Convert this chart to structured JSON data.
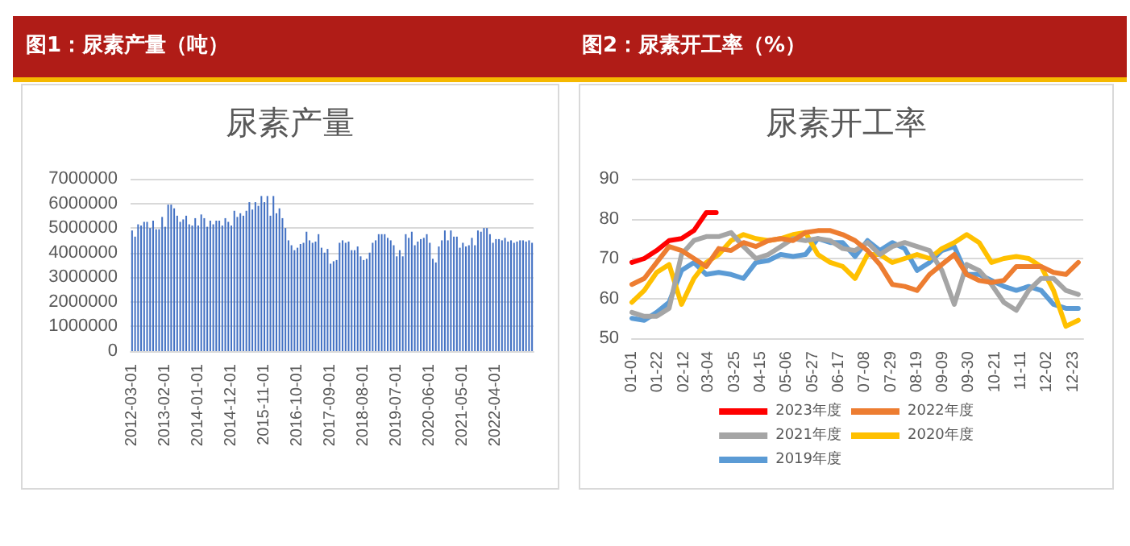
{
  "chart_data": [
    {
      "type": "bar",
      "title": "图1：尿素产量（吨）",
      "subtitle": "尿素产量",
      "color": "#4472c4",
      "grid": "y",
      "legend": false,
      "categories": [
        "2012-03-01",
        null,
        null,
        null,
        null,
        null,
        null,
        null,
        null,
        null,
        null,
        "2013-02-01",
        null,
        null,
        null,
        null,
        null,
        null,
        null,
        null,
        null,
        null,
        "2014-01-01",
        null,
        null,
        null,
        null,
        null,
        null,
        null,
        null,
        null,
        null,
        "2014-12-01",
        null,
        null,
        null,
        null,
        null,
        null,
        null,
        null,
        null,
        null,
        "2015-11-01",
        null,
        null,
        null,
        null,
        null,
        null,
        null,
        null,
        null,
        null,
        "2016-10-01",
        null,
        null,
        null,
        null,
        null,
        null,
        null,
        null,
        null,
        null,
        "2017-09-01",
        null,
        null,
        null,
        null,
        null,
        null,
        null,
        null,
        null,
        null,
        "2018-08-01",
        null,
        null,
        null,
        null,
        null,
        null,
        null,
        null,
        null,
        null,
        "2019-07-01",
        null,
        null,
        null,
        null,
        null,
        null,
        null,
        null,
        null,
        null,
        "2020-06-01",
        null,
        null,
        null,
        null,
        null,
        null,
        null,
        null,
        null,
        null,
        "2021-05-01",
        null,
        null,
        null,
        null,
        null,
        null,
        null,
        null,
        null,
        null,
        "2022-04-01",
        null,
        null,
        null,
        null,
        null,
        null,
        null,
        null,
        null,
        null,
        null,
        null
      ],
      "values": [
        4900000,
        4650000,
        5150000,
        5100000,
        5250000,
        5250000,
        5000000,
        5300000,
        4950000,
        4950000,
        5450000,
        5050000,
        5950000,
        5950000,
        5800000,
        5500000,
        5250000,
        5350000,
        5500000,
        5150000,
        5100000,
        5400000,
        5100000,
        5550000,
        5400000,
        5050000,
        5300000,
        5150000,
        5300000,
        5300000,
        5100000,
        5400000,
        5250000,
        5100000,
        5700000,
        5450000,
        5600000,
        5500000,
        5700000,
        6050000,
        5750000,
        6050000,
        5900000,
        6300000,
        6050000,
        6300000,
        5500000,
        6300000,
        5600000,
        5800000,
        5400000,
        5000000,
        4500000,
        4300000,
        4100000,
        4200000,
        4350000,
        4400000,
        4850000,
        4500000,
        4400000,
        4450000,
        4750000,
        4200000,
        4000000,
        4150000,
        3550000,
        3650000,
        3700000,
        4400000,
        4500000,
        4400000,
        4450000,
        4100000,
        4100000,
        4250000,
        3850000,
        3700000,
        3750000,
        4000000,
        4400000,
        4500000,
        4750000,
        4750000,
        4750000,
        4600000,
        4500000,
        4300000,
        3850000,
        4100000,
        3850000,
        4750000,
        4600000,
        4850000,
        4300000,
        4450000,
        4550000,
        4600000,
        4750000,
        4400000,
        3750000,
        3600000,
        4250000,
        4500000,
        4900000,
        4500000,
        4900000,
        4650000,
        4650000,
        4200000,
        4400000,
        4250000,
        4300000,
        4600000,
        4300000,
        4900000,
        4850000,
        5000000,
        5000000,
        4750000,
        4400000,
        4550000,
        4550000,
        4500000,
        4600000,
        4450000,
        4500000,
        4400000,
        4450000,
        4500000,
        4500000,
        4450000,
        4500000,
        4400000
      ],
      "ylim": [
        0,
        7000000
      ],
      "yticks": [
        0,
        1000000,
        2000000,
        3000000,
        4000000,
        5000000,
        6000000,
        7000000
      ]
    },
    {
      "type": "line",
      "title": "图2：尿素开工率（%）",
      "subtitle": "尿素开工率",
      "grid": "y",
      "legend": "bottom",
      "marker": "none",
      "line_style": "solid",
      "xlim": [
        "--01-01",
        "--12-31"
      ],
      "xticks": [
        {
          "value": "--01-01",
          "label": "01-01"
        },
        {
          "value": "--01-22",
          "label": "01-22"
        },
        {
          "value": "--02-12",
          "label": "02-12"
        },
        {
          "value": "--03-04",
          "label": "03-04"
        },
        {
          "value": "--03-25",
          "label": "03-25"
        },
        {
          "value": "--04-15",
          "label": "04-15"
        },
        {
          "value": "--05-06",
          "label": "05-06"
        },
        {
          "value": "--05-27",
          "label": "05-27"
        },
        {
          "value": "--06-17",
          "label": "06-17"
        },
        {
          "value": "--07-08",
          "label": "07-08"
        },
        {
          "value": "--07-29",
          "label": "07-29"
        },
        {
          "value": "--08-19",
          "label": "08-19"
        },
        {
          "value": "--09-09",
          "label": "09-09"
        },
        {
          "value": "--09-30",
          "label": "09-30"
        },
        {
          "value": "--10-21",
          "label": "10-21"
        },
        {
          "value": "--11-11",
          "label": "11-11"
        },
        {
          "value": "--12-02",
          "label": "12-02"
        },
        {
          "value": "--12-23",
          "label": "12-23"
        }
      ],
      "ylim": [
        50,
        90
      ],
      "yticks": [
        50,
        60,
        70,
        80,
        90
      ],
      "x": [
        "--01-01",
        "--01-11",
        "--01-21",
        "--01-31",
        "--02-10",
        "--02-20",
        "--03-02",
        "--03-12",
        "--03-22",
        "--04-01",
        "--04-11",
        "--04-21",
        "--05-01",
        "--05-11",
        "--05-21",
        "--05-31",
        "--06-10",
        "--06-20",
        "--06-30",
        "--07-10",
        "--07-20",
        "--07-30",
        "--08-09",
        "--08-19",
        "--08-29",
        "--09-08",
        "--09-18",
        "--09-28",
        "--10-08",
        "--10-18",
        "--10-28",
        "--11-07",
        "--11-17",
        "--11-27",
        "--12-07",
        "--12-17",
        "--12-27"
      ],
      "series": [
        {
          "name": "2023年度",
          "color": "#ff0000",
          "x": [
            "--01-01",
            "--01-11",
            "--01-21",
            "--01-31",
            "--02-10",
            "--02-20",
            "--03-02",
            "--03-10"
          ],
          "values": [
            69,
            70,
            72,
            74.5,
            75,
            77,
            81.5,
            81.5
          ]
        },
        {
          "name": "2022年度",
          "color": "#ed7d31",
          "values": [
            63.5,
            65,
            69,
            73,
            72,
            70,
            68,
            72.5,
            72,
            74,
            73,
            74.5,
            75,
            74.5,
            76.5,
            77,
            77,
            76,
            74.5,
            72,
            68.5,
            63.5,
            63,
            62,
            66,
            68.5,
            71,
            66,
            64.5,
            64,
            64.5,
            68,
            68,
            68,
            66.5,
            66,
            69
          ]
        },
        {
          "name": "2021年度",
          "color": "#a5a5a5",
          "values": [
            56.5,
            55.5,
            55.5,
            57.5,
            71,
            74.5,
            75.5,
            75.5,
            76.5,
            73,
            70,
            71,
            73,
            75,
            74.5,
            75,
            74.5,
            72.5,
            72,
            74,
            71,
            73,
            74,
            73,
            72,
            67,
            58.5,
            68.5,
            67,
            63.5,
            59,
            57,
            62,
            65,
            65,
            62,
            61
          ]
        },
        {
          "name": "2020年度",
          "color": "#ffc000",
          "values": [
            59,
            62,
            66.5,
            68.5,
            58.5,
            65,
            69,
            71,
            74.5,
            76,
            75,
            74.5,
            75,
            76,
            76.5,
            71,
            69,
            68,
            65,
            71,
            71,
            69,
            70,
            71,
            70,
            72.5,
            74,
            76,
            74,
            69,
            70,
            70.5,
            70,
            68,
            62,
            53,
            54.5
          ]
        },
        {
          "name": "2019年度",
          "color": "#5b9bd5",
          "values": [
            55,
            54.5,
            56.5,
            59,
            67,
            69,
            66,
            66.5,
            66,
            65,
            69,
            69.5,
            71,
            70.5,
            71,
            75,
            74,
            74,
            70.5,
            74.5,
            72,
            74,
            72.5,
            67,
            69,
            72,
            73,
            66,
            66,
            64.5,
            63,
            62,
            63,
            62,
            58.5,
            57.5,
            57.5
          ]
        }
      ]
    }
  ]
}
